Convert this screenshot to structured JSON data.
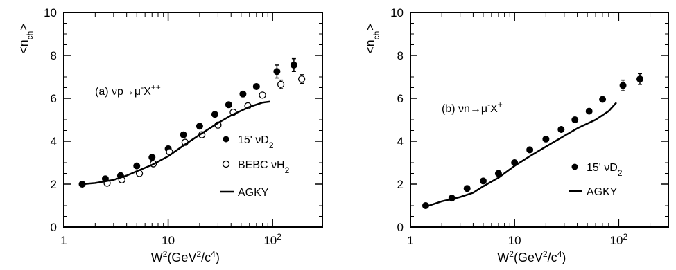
{
  "chart_data": [
    {
      "type": "scatter",
      "panel_label": "(a) νp→μ⁻X⁺⁺",
      "xlabel": "W²(GeV²/c⁴)",
      "ylabel": "<n_ch>",
      "xscale": "log",
      "xlim": [
        1,
        300
      ],
      "ylim": [
        0,
        10
      ],
      "x_tick_labels": [
        "1",
        "10",
        "10²"
      ],
      "y_tick_labels": [
        "0",
        "2",
        "4",
        "6",
        "8",
        "10"
      ],
      "legend_position": "inside-right",
      "series": [
        {
          "name": "15' νD₂",
          "marker": "filled-circle",
          "x": [
            1.5,
            2.5,
            3.5,
            5,
            7,
            10,
            14,
            20,
            28,
            38,
            52,
            70,
            110,
            160
          ],
          "y": [
            2.0,
            2.25,
            2.4,
            2.85,
            3.25,
            3.65,
            4.3,
            4.7,
            5.25,
            5.7,
            6.2,
            6.55,
            7.25,
            7.55
          ],
          "err": [
            0.1,
            0.1,
            0.1,
            0.1,
            0.1,
            0.1,
            0.1,
            0.1,
            0.1,
            0.1,
            0.1,
            0.1,
            0.3,
            0.3
          ]
        },
        {
          "name": "BEBC νH₂",
          "marker": "open-circle",
          "x": [
            2.6,
            3.6,
            5.3,
            7.2,
            10.3,
            14.5,
            21,
            30,
            42,
            58,
            80,
            120,
            190
          ],
          "y": [
            2.05,
            2.2,
            2.5,
            2.95,
            3.5,
            3.95,
            4.3,
            4.75,
            5.35,
            5.65,
            6.15,
            6.65,
            6.9
          ],
          "err": [
            0.1,
            0.1,
            0.1,
            0.1,
            0.1,
            0.1,
            0.1,
            0.1,
            0.1,
            0.1,
            0.1,
            0.2,
            0.2
          ]
        },
        {
          "name": "AGKY",
          "marker": "line",
          "x": [
            1.5,
            2,
            3,
            4,
            5,
            7,
            10,
            14,
            20,
            30,
            40,
            60,
            80,
            95
          ],
          "y": [
            2.0,
            2.05,
            2.2,
            2.4,
            2.6,
            2.9,
            3.3,
            3.8,
            4.3,
            4.85,
            5.2,
            5.6,
            5.8,
            5.85
          ]
        }
      ]
    },
    {
      "type": "scatter",
      "panel_label": "(b) νn→μ⁻X⁺",
      "xlabel": "W²(GeV²/c⁴)",
      "ylabel": "<n_ch>",
      "xscale": "log",
      "xlim": [
        1,
        300
      ],
      "ylim": [
        0,
        10
      ],
      "x_tick_labels": [
        "1",
        "10",
        "10²"
      ],
      "y_tick_labels": [
        "0",
        "2",
        "4",
        "6",
        "8",
        "10"
      ],
      "legend_position": "inside-right",
      "series": [
        {
          "name": "15' νD₂",
          "marker": "filled-circle",
          "x": [
            1.4,
            2.5,
            3.5,
            5,
            7,
            10,
            14,
            20,
            28,
            38,
            52,
            70,
            110,
            160
          ],
          "y": [
            1.0,
            1.35,
            1.8,
            2.15,
            2.5,
            3.0,
            3.6,
            4.1,
            4.55,
            5.0,
            5.4,
            5.95,
            6.6,
            6.9
          ],
          "err": [
            0.1,
            0.1,
            0.1,
            0.1,
            0.1,
            0.1,
            0.1,
            0.1,
            0.1,
            0.1,
            0.1,
            0.1,
            0.25,
            0.25
          ]
        },
        {
          "name": "AGKY",
          "marker": "line",
          "x": [
            1.4,
            2,
            3,
            4,
            5,
            7,
            10,
            14,
            20,
            30,
            40,
            60,
            80,
            95
          ],
          "y": [
            0.95,
            1.2,
            1.4,
            1.6,
            1.9,
            2.3,
            2.85,
            3.3,
            3.75,
            4.25,
            4.6,
            5.0,
            5.4,
            5.8
          ]
        }
      ]
    }
  ]
}
